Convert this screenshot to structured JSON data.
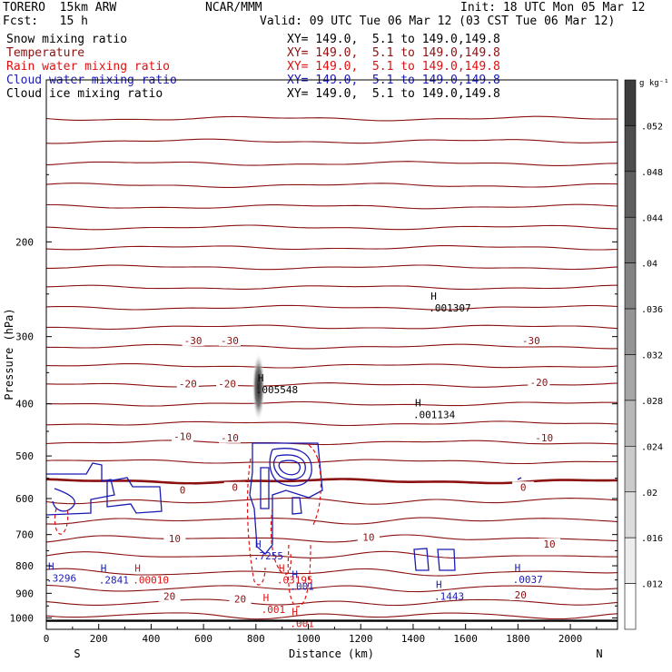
{
  "header": {
    "model": "TORERO  15km ARW",
    "org": "NCAR/MMM",
    "init": "Init: 18 UTC Mon 05 Mar 12",
    "fcst": "Fcst:   15 h",
    "valid": "Valid: 09 UTC Tue 06 Mar 12 (03 CST Tue 06 Mar 12)"
  },
  "legend": [
    {
      "label": "Snow mixing ratio",
      "xy": "XY= 149.0,  5.1 to 149.0,149.8",
      "color": "#000000"
    },
    {
      "label": "Temperature",
      "xy": "XY= 149.0,  5.1 to 149.0,149.8",
      "color": "#8b1010"
    },
    {
      "label": "Rain water mixing ratio",
      "xy": "XY= 149.0,  5.1 to 149.0,149.8",
      "color": "#dd1111"
    },
    {
      "label": "Cloud water mixing ratio",
      "xy": "XY= 149.0,  5.1 to 149.0,149.8",
      "color": "#1a1ab4"
    },
    {
      "label": "Cloud ice mixing ratio",
      "xy": "XY= 149.0,  5.1 to 149.0,149.8",
      "color": "#000000"
    }
  ],
  "colorbar": {
    "unit": "g kg⁻¹",
    "ticks": [
      ".052",
      ".048",
      ".044",
      ".04",
      ".036",
      ".032",
      ".028",
      ".024",
      ".02",
      ".016",
      ".012"
    ]
  },
  "chart_data": {
    "type": "contour",
    "xlabel": "Distance (km)",
    "ylabel": "Pressure (hPa)",
    "xlim": [
      0,
      2180
    ],
    "ylim": [
      1050,
      100
    ],
    "y_scale": "log",
    "x_ticks": [
      0,
      200,
      400,
      600,
      800,
      1000,
      1200,
      1400,
      1600,
      1800,
      2000
    ],
    "y_ticks": [
      200,
      300,
      400,
      500,
      600,
      700,
      800,
      900,
      1000
    ],
    "x_end_labels": {
      "left": "S",
      "right": "N"
    },
    "temperature_contours": {
      "color": "#8b1010",
      "levels_labeled": [
        {
          "value": "-30",
          "labels": [
            [
              560,
              305
            ],
            [
              700,
              305
            ],
            [
              1850,
              305
            ]
          ]
        },
        {
          "value": "-20",
          "labels": [
            [
              540,
              367
            ],
            [
              690,
              367
            ],
            [
              1880,
              365
            ]
          ]
        },
        {
          "value": "-10",
          "labels": [
            [
              520,
              460
            ],
            [
              700,
              462
            ],
            [
              1900,
              462
            ]
          ]
        },
        {
          "value": "0",
          "labels": [
            [
              520,
              578
            ],
            [
              720,
              572
            ],
            [
              1820,
              571
            ]
          ]
        },
        {
          "value": "10",
          "labels": [
            [
              490,
              712
            ],
            [
              1230,
              708
            ],
            [
              1920,
              728
            ]
          ]
        },
        {
          "value": "20",
          "labels": [
            [
              470,
              912
            ],
            [
              740,
              922
            ],
            [
              1810,
              906
            ]
          ]
        }
      ],
      "isotherm_pressures": [
        118,
        130,
        143,
        157,
        172,
        188,
        205,
        223,
        243,
        265,
        288,
        313,
        340,
        369,
        400,
        435,
        472,
        512,
        557,
        606,
        658,
        712,
        766,
        823,
        880,
        936,
        990
      ]
    },
    "cloud_ice_maxima": [
      {
        "x": 1460,
        "p": 262,
        "label": ".001307"
      },
      {
        "x": 1400,
        "p": 414,
        "label": ".001134"
      },
      {
        "x": 800,
        "p": 372,
        "label": ".005548"
      }
    ],
    "cloud_water_maxima": [
      {
        "x": 0,
        "p": 833,
        "label": ".3296"
      },
      {
        "x": 200,
        "p": 840,
        "label": ".2841"
      },
      {
        "x": 790,
        "p": 758,
        "label": ".7255"
      },
      {
        "x": 930,
        "p": 863,
        "label": ".001"
      },
      {
        "x": 1780,
        "p": 838,
        "label": ".0037"
      },
      {
        "x": 1480,
        "p": 900,
        "label": ".1443"
      }
    ],
    "rain_water_maxima": [
      {
        "x": 330,
        "p": 840,
        "label": ".00010"
      },
      {
        "x": 880,
        "p": 840,
        "label": ".03195"
      },
      {
        "x": 820,
        "p": 952,
        "label": ".001"
      },
      {
        "x": 930,
        "p": 1012,
        "label": ".001"
      }
    ],
    "surface_pressure": 1012
  }
}
